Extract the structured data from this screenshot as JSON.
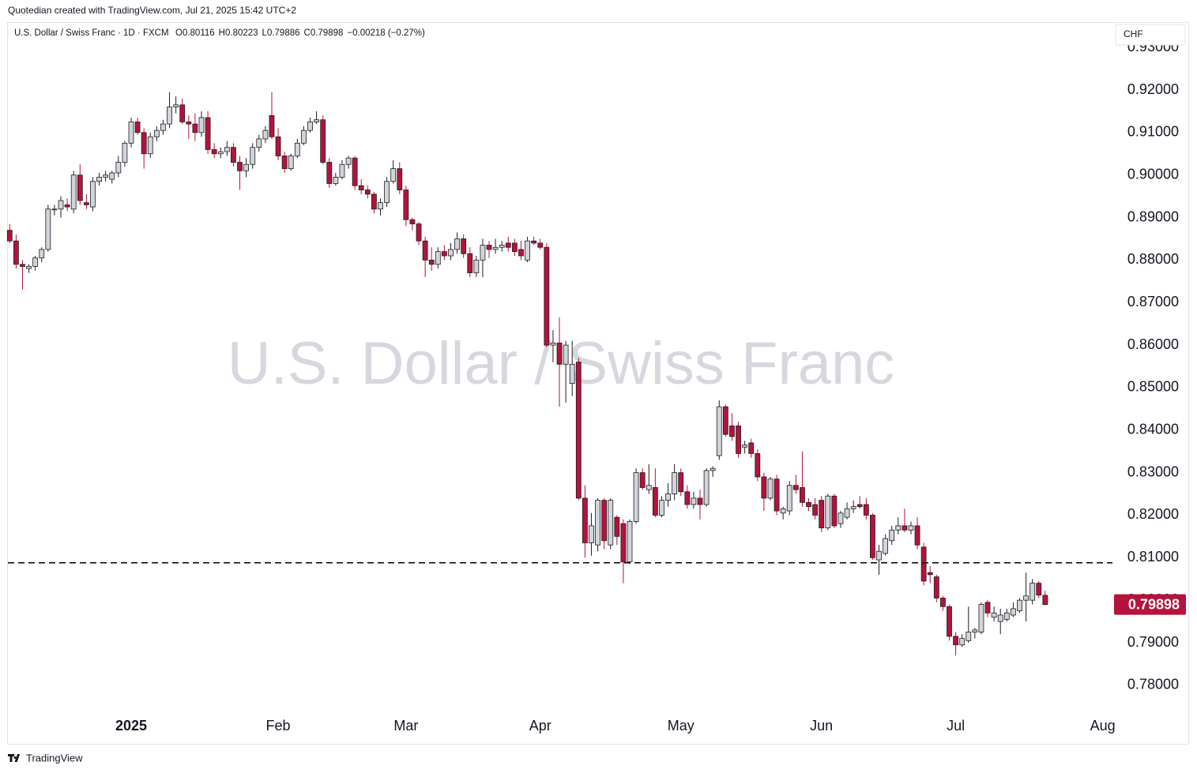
{
  "chart_data": {
    "type": "candlestick",
    "credit": "Quotedian created with TradingView.com, Jul 21, 2025 15:42 UTC+2",
    "symbol": "U.S. Dollar / Swiss Franc · 1D · FXCM",
    "ohlc_legend": [
      "O0.80116",
      "H0.80223",
      "L0.79886",
      "C0.79898",
      "−0.00218 (−0.27%)"
    ],
    "currency": "CHF",
    "watermark": "U.S. Dollar / Swiss Franc",
    "brand": "TradingView",
    "up_color": "#d1d4dc",
    "down_color": "#b5123c",
    "outline_color": "#1e1e1e",
    "grid": false,
    "reference_line": 0.8088,
    "ylim": [
      0.7731,
      0.9356
    ],
    "yticks": [
      {
        "value": 0.78,
        "label": "0.78000"
      },
      {
        "value": 0.79,
        "label": "0.79000"
      },
      {
        "value": 0.8,
        "label": "0.80000"
      },
      {
        "value": 0.81,
        "label": "0.81000"
      },
      {
        "value": 0.82,
        "label": "0.82000"
      },
      {
        "value": 0.83,
        "label": "0.83000"
      },
      {
        "value": 0.84,
        "label": "0.84000"
      },
      {
        "value": 0.85,
        "label": "0.85000"
      },
      {
        "value": 0.86,
        "label": "0.86000"
      },
      {
        "value": 0.87,
        "label": "0.87000"
      },
      {
        "value": 0.88,
        "label": "0.88000"
      },
      {
        "value": 0.89,
        "label": "0.89000"
      },
      {
        "value": 0.9,
        "label": "0.90000"
      },
      {
        "value": 0.91,
        "label": "0.91000"
      },
      {
        "value": 0.92,
        "label": "0.92000"
      },
      {
        "value": 0.93,
        "label": "0.93000"
      }
    ],
    "categories": [
      null,
      null,
      null,
      null,
      null,
      null,
      null,
      null,
      null,
      null,
      null,
      null,
      null,
      null,
      null,
      null,
      null,
      null,
      null,
      "2025",
      null,
      null,
      null,
      null,
      null,
      null,
      null,
      null,
      null,
      null,
      null,
      null,
      null,
      null,
      null,
      null,
      null,
      null,
      null,
      null,
      null,
      null,
      "Feb",
      null,
      null,
      null,
      null,
      null,
      null,
      null,
      null,
      null,
      null,
      null,
      null,
      null,
      null,
      null,
      null,
      null,
      null,
      null,
      "Mar",
      null,
      null,
      null,
      null,
      null,
      null,
      null,
      null,
      null,
      null,
      null,
      null,
      null,
      null,
      null,
      null,
      null,
      null,
      null,
      null,
      "Apr",
      null,
      null,
      null,
      null,
      null,
      null,
      null,
      null,
      null,
      null,
      null,
      null,
      null,
      null,
      null,
      null,
      null,
      null,
      null,
      null,
      null,
      "May",
      null,
      null,
      null,
      null,
      null,
      null,
      null,
      null,
      null,
      null,
      null,
      null,
      null,
      null,
      null,
      null,
      null,
      null,
      null,
      null,
      null,
      "Jun",
      null,
      null,
      null,
      null,
      null,
      null,
      null,
      null,
      null,
      null,
      null,
      null,
      null,
      null,
      null,
      null,
      null,
      null,
      null,
      null,
      "Jul",
      null,
      null,
      null,
      null,
      null,
      null,
      null,
      null,
      null,
      null,
      null,
      null,
      null,
      null,
      null,
      null,
      null,
      null,
      null,
      null,
      null,
      null,
      "Aug"
    ],
    "candles": [
      [
        0.887,
        0.8885,
        0.884,
        0.8845
      ],
      [
        0.8845,
        0.886,
        0.878,
        0.879
      ],
      [
        0.879,
        0.88,
        0.873,
        0.8785
      ],
      [
        0.878,
        0.879,
        0.877,
        0.8785
      ],
      [
        0.8785,
        0.881,
        0.8775,
        0.8805
      ],
      [
        0.8805,
        0.883,
        0.8795,
        0.8825
      ],
      [
        0.8825,
        0.893,
        0.882,
        0.892
      ],
      [
        0.892,
        0.893,
        0.8905,
        0.892
      ],
      [
        0.892,
        0.895,
        0.89,
        0.894
      ],
      [
        0.893,
        0.8945,
        0.8915,
        0.8925
      ],
      [
        0.892,
        0.901,
        0.891,
        0.9
      ],
      [
        0.9,
        0.9025,
        0.893,
        0.894
      ],
      [
        0.8935,
        0.8955,
        0.892,
        0.893
      ],
      [
        0.8925,
        0.8995,
        0.8915,
        0.8985
      ],
      [
        0.8985,
        0.9005,
        0.8975,
        0.8995
      ],
      [
        0.8995,
        0.901,
        0.8985,
        0.9
      ],
      [
        0.899,
        0.901,
        0.898,
        0.9005
      ],
      [
        0.9005,
        0.9045,
        0.8995,
        0.903
      ],
      [
        0.903,
        0.908,
        0.902,
        0.9075
      ],
      [
        0.9075,
        0.9135,
        0.9065,
        0.9125
      ],
      [
        0.9125,
        0.9135,
        0.9095,
        0.91
      ],
      [
        0.91,
        0.911,
        0.9015,
        0.905
      ],
      [
        0.905,
        0.91,
        0.904,
        0.909
      ],
      [
        0.909,
        0.9115,
        0.908,
        0.9105
      ],
      [
        0.9105,
        0.913,
        0.9095,
        0.912
      ],
      [
        0.912,
        0.9195,
        0.911,
        0.916
      ],
      [
        0.916,
        0.9185,
        0.9145,
        0.9165
      ],
      [
        0.9165,
        0.918,
        0.912,
        0.9125
      ],
      [
        0.9125,
        0.914,
        0.9085,
        0.912
      ],
      [
        0.912,
        0.9145,
        0.908,
        0.91
      ],
      [
        0.91,
        0.915,
        0.909,
        0.9135
      ],
      [
        0.9135,
        0.915,
        0.905,
        0.906
      ],
      [
        0.906,
        0.9075,
        0.904,
        0.905
      ],
      [
        0.905,
        0.9065,
        0.904,
        0.9055
      ],
      [
        0.9055,
        0.908,
        0.9045,
        0.9065
      ],
      [
        0.9065,
        0.9075,
        0.902,
        0.903
      ],
      [
        0.903,
        0.9045,
        0.8965,
        0.901
      ],
      [
        0.901,
        0.904,
        0.8995,
        0.9025
      ],
      [
        0.9025,
        0.9075,
        0.9015,
        0.9065
      ],
      [
        0.9065,
        0.9095,
        0.9055,
        0.9085
      ],
      [
        0.9085,
        0.9115,
        0.9075,
        0.9105
      ],
      [
        0.914,
        0.9195,
        0.9085,
        0.909
      ],
      [
        0.909,
        0.911,
        0.9035,
        0.9045
      ],
      [
        0.9045,
        0.9055,
        0.9005,
        0.9015
      ],
      [
        0.9015,
        0.905,
        0.901,
        0.9045
      ],
      [
        0.9045,
        0.9085,
        0.904,
        0.9075
      ],
      [
        0.9075,
        0.9115,
        0.907,
        0.9105
      ],
      [
        0.9105,
        0.9135,
        0.91,
        0.9125
      ],
      [
        0.9125,
        0.915,
        0.912,
        0.913
      ],
      [
        0.913,
        0.914,
        0.9025,
        0.903
      ],
      [
        0.903,
        0.904,
        0.897,
        0.898
      ],
      [
        0.898,
        0.9005,
        0.8975,
        0.8995
      ],
      [
        0.8995,
        0.9035,
        0.899,
        0.9025
      ],
      [
        0.9025,
        0.9045,
        0.9015,
        0.904
      ],
      [
        0.904,
        0.9045,
        0.8965,
        0.8975
      ],
      [
        0.8975,
        0.899,
        0.8955,
        0.8965
      ],
      [
        0.8965,
        0.8975,
        0.8945,
        0.8955
      ],
      [
        0.8955,
        0.896,
        0.891,
        0.892
      ],
      [
        0.892,
        0.8945,
        0.8905,
        0.8935
      ],
      [
        0.8935,
        0.8995,
        0.8925,
        0.8985
      ],
      [
        0.8985,
        0.9035,
        0.898,
        0.9015
      ],
      [
        0.9015,
        0.903,
        0.8955,
        0.8965
      ],
      [
        0.8965,
        0.8975,
        0.888,
        0.8895
      ],
      [
        0.8895,
        0.89,
        0.887,
        0.8885
      ],
      [
        0.8885,
        0.889,
        0.8835,
        0.8845
      ],
      [
        0.8845,
        0.8855,
        0.876,
        0.88
      ],
      [
        0.88,
        0.883,
        0.8775,
        0.879
      ],
      [
        0.879,
        0.883,
        0.878,
        0.882
      ],
      [
        0.882,
        0.8835,
        0.88,
        0.881
      ],
      [
        0.881,
        0.884,
        0.88,
        0.8825
      ],
      [
        0.8825,
        0.8865,
        0.8815,
        0.885
      ],
      [
        0.885,
        0.886,
        0.8805,
        0.8815
      ],
      [
        0.8815,
        0.883,
        0.876,
        0.877
      ],
      [
        0.877,
        0.881,
        0.876,
        0.88
      ],
      [
        0.88,
        0.885,
        0.876,
        0.8835
      ],
      [
        0.8835,
        0.8845,
        0.8805,
        0.8825
      ],
      [
        0.8825,
        0.885,
        0.8815,
        0.883
      ],
      [
        0.883,
        0.8845,
        0.882,
        0.8835
      ],
      [
        0.884,
        0.8855,
        0.882,
        0.883
      ],
      [
        0.884,
        0.885,
        0.881,
        0.882
      ],
      [
        0.8825,
        0.8845,
        0.88,
        0.881
      ],
      [
        0.88,
        0.8855,
        0.8795,
        0.8845
      ],
      [
        0.8845,
        0.8855,
        0.8835,
        0.884
      ],
      [
        0.884,
        0.885,
        0.8825,
        0.883
      ],
      [
        0.883,
        0.884,
        0.8595,
        0.86
      ],
      [
        0.86,
        0.8635,
        0.856,
        0.8605
      ],
      [
        0.8605,
        0.8665,
        0.8455,
        0.8555
      ],
      [
        0.8555,
        0.861,
        0.8465,
        0.86
      ],
      [
        0.851,
        0.861,
        0.848,
        0.8555
      ],
      [
        0.856,
        0.857,
        0.8235,
        0.824
      ],
      [
        0.824,
        0.827,
        0.81,
        0.8135
      ],
      [
        0.8135,
        0.8205,
        0.8105,
        0.8175
      ],
      [
        0.813,
        0.824,
        0.8115,
        0.8235
      ],
      [
        0.8235,
        0.824,
        0.812,
        0.814
      ],
      [
        0.813,
        0.824,
        0.812,
        0.8235
      ],
      [
        0.8195,
        0.82,
        0.813,
        0.815
      ],
      [
        0.818,
        0.819,
        0.804,
        0.809
      ],
      [
        0.809,
        0.819,
        0.8085,
        0.8185
      ],
      [
        0.8185,
        0.831,
        0.818,
        0.83
      ],
      [
        0.83,
        0.831,
        0.826,
        0.8265
      ],
      [
        0.826,
        0.832,
        0.825,
        0.827
      ],
      [
        0.8265,
        0.831,
        0.8195,
        0.82
      ],
      [
        0.82,
        0.8245,
        0.8195,
        0.8235
      ],
      [
        0.8235,
        0.8275,
        0.822,
        0.825
      ],
      [
        0.825,
        0.832,
        0.8235,
        0.83
      ],
      [
        0.83,
        0.831,
        0.8245,
        0.8255
      ],
      [
        0.8255,
        0.827,
        0.8215,
        0.8225
      ],
      [
        0.8225,
        0.8255,
        0.8215,
        0.824
      ],
      [
        0.824,
        0.826,
        0.819,
        0.8225
      ],
      [
        0.8225,
        0.831,
        0.822,
        0.8305
      ],
      [
        0.8305,
        0.8315,
        0.829,
        0.831
      ],
      [
        0.834,
        0.847,
        0.833,
        0.8455
      ],
      [
        0.8455,
        0.846,
        0.8385,
        0.839
      ],
      [
        0.841,
        0.844,
        0.8375,
        0.8385
      ],
      [
        0.841,
        0.842,
        0.8335,
        0.8345
      ],
      [
        0.836,
        0.8375,
        0.8345,
        0.8365
      ],
      [
        0.837,
        0.838,
        0.8335,
        0.8345
      ],
      [
        0.8345,
        0.8355,
        0.828,
        0.829
      ],
      [
        0.829,
        0.83,
        0.821,
        0.824
      ],
      [
        0.824,
        0.829,
        0.8235,
        0.8285
      ],
      [
        0.8285,
        0.8295,
        0.82,
        0.821
      ],
      [
        0.8205,
        0.822,
        0.819,
        0.8215
      ],
      [
        0.821,
        0.828,
        0.82,
        0.827
      ],
      [
        0.827,
        0.8295,
        0.825,
        0.826
      ],
      [
        0.8265,
        0.835,
        0.822,
        0.823
      ],
      [
        0.823,
        0.824,
        0.821,
        0.822
      ],
      [
        0.8225,
        0.824,
        0.819,
        0.82
      ],
      [
        0.8235,
        0.8245,
        0.816,
        0.817
      ],
      [
        0.817,
        0.825,
        0.8165,
        0.8245
      ],
      [
        0.8245,
        0.825,
        0.817,
        0.8175
      ],
      [
        0.818,
        0.821,
        0.817,
        0.8205
      ],
      [
        0.8195,
        0.823,
        0.819,
        0.8215
      ],
      [
        0.8215,
        0.8235,
        0.8205,
        0.822
      ],
      [
        0.8225,
        0.8245,
        0.8215,
        0.822
      ],
      [
        0.8225,
        0.824,
        0.819,
        0.82
      ],
      [
        0.82,
        0.8205,
        0.8095,
        0.81
      ],
      [
        0.8095,
        0.813,
        0.806,
        0.8115
      ],
      [
        0.811,
        0.8155,
        0.8105,
        0.8145
      ],
      [
        0.814,
        0.8175,
        0.813,
        0.8165
      ],
      [
        0.8165,
        0.8195,
        0.8155,
        0.8175
      ],
      [
        0.8175,
        0.8215,
        0.816,
        0.8165
      ],
      [
        0.8165,
        0.8185,
        0.8155,
        0.8175
      ],
      [
        0.8175,
        0.8195,
        0.812,
        0.813
      ],
      [
        0.8125,
        0.8135,
        0.8035,
        0.8045
      ],
      [
        0.8065,
        0.808,
        0.804,
        0.806
      ],
      [
        0.8055,
        0.806,
        0.7995,
        0.8005
      ],
      [
        0.8005,
        0.801,
        0.7975,
        0.7985
      ],
      [
        0.7985,
        0.799,
        0.7905,
        0.7915
      ],
      [
        0.7915,
        0.7925,
        0.787,
        0.7895
      ],
      [
        0.7895,
        0.792,
        0.789,
        0.791
      ],
      [
        0.7905,
        0.7985,
        0.79,
        0.7925
      ],
      [
        0.7925,
        0.7935,
        0.791,
        0.793
      ],
      [
        0.7925,
        0.7995,
        0.792,
        0.799
      ],
      [
        0.7995,
        0.8,
        0.796,
        0.797
      ],
      [
        0.796,
        0.7985,
        0.795,
        0.797
      ],
      [
        0.795,
        0.798,
        0.792,
        0.7965
      ],
      [
        0.7955,
        0.798,
        0.795,
        0.797
      ],
      [
        0.7965,
        0.7995,
        0.796,
        0.798
      ],
      [
        0.7975,
        0.8005,
        0.797,
        0.8
      ],
      [
        0.8,
        0.8065,
        0.795,
        0.801
      ],
      [
        0.8,
        0.805,
        0.799,
        0.804
      ],
      [
        0.804,
        0.8045,
        0.8005,
        0.8012
      ],
      [
        0.80116,
        0.80223,
        0.79886,
        0.79898
      ],
      null,
      null,
      null,
      null,
      null,
      null,
      null,
      null,
      null
    ]
  }
}
